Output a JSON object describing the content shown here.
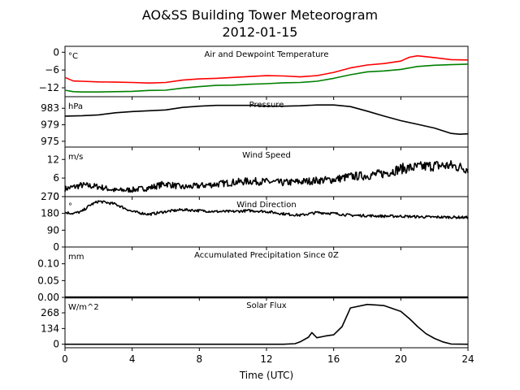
{
  "title": "AO&SS Building Tower Meteorogram",
  "subtitle": "2012-01-15",
  "chart_data": {
    "type": "line",
    "title": "AO&SS Building Tower Meteorogram",
    "subtitle": "2012-01-15",
    "xlabel": "Time (UTC)",
    "xlim": [
      0,
      24
    ],
    "x_ticks": [
      0,
      4,
      8,
      12,
      16,
      20,
      24
    ],
    "x_tick_labels": [
      "0",
      "4",
      "8",
      "12",
      "16",
      "20",
      "24"
    ],
    "legend": "none",
    "grid": false,
    "panels": [
      {
        "title": "Air and Dewpoint Temperature",
        "unit": "°C",
        "ylim": [
          -15,
          2
        ],
        "y_ticks": [
          0,
          -6,
          -12
        ],
        "y_tick_labels": [
          "0",
          "−6",
          "−12"
        ],
        "series": [
          {
            "color": "#ff0000",
            "points": [
              [
                0,
                -8.5
              ],
              [
                0.5,
                -9.7
              ],
              [
                1,
                -9.8
              ],
              [
                2,
                -10.0
              ],
              [
                3,
                -10.1
              ],
              [
                4,
                -10.2
              ],
              [
                5,
                -10.4
              ],
              [
                6,
                -10.2
              ],
              [
                7,
                -9.4
              ],
              [
                8,
                -9.0
              ],
              [
                9,
                -8.8
              ],
              [
                10,
                -8.5
              ],
              [
                11,
                -8.2
              ],
              [
                12,
                -7.9
              ],
              [
                13,
                -8.0
              ],
              [
                14,
                -8.3
              ],
              [
                15,
                -7.9
              ],
              [
                16,
                -6.8
              ],
              [
                17,
                -5.3
              ],
              [
                18,
                -4.3
              ],
              [
                19,
                -3.8
              ],
              [
                20,
                -3.0
              ],
              [
                20.5,
                -1.7
              ],
              [
                21,
                -1.2
              ],
              [
                22,
                -1.8
              ],
              [
                23,
                -2.5
              ],
              [
                24,
                -2.6
              ]
            ]
          },
          {
            "color": "#008000",
            "points": [
              [
                0,
                -12.8
              ],
              [
                0.5,
                -13.3
              ],
              [
                1,
                -13.4
              ],
              [
                2,
                -13.4
              ],
              [
                3,
                -13.3
              ],
              [
                4,
                -13.2
              ],
              [
                5,
                -12.9
              ],
              [
                6,
                -12.8
              ],
              [
                7,
                -12.1
              ],
              [
                8,
                -11.6
              ],
              [
                9,
                -11.2
              ],
              [
                10,
                -11.1
              ],
              [
                11,
                -10.8
              ],
              [
                12,
                -10.6
              ],
              [
                13,
                -10.3
              ],
              [
                14,
                -10.2
              ],
              [
                15,
                -9.8
              ],
              [
                16,
                -8.8
              ],
              [
                17,
                -7.6
              ],
              [
                18,
                -6.6
              ],
              [
                19,
                -6.3
              ],
              [
                20,
                -5.8
              ],
              [
                21,
                -4.8
              ],
              [
                22,
                -4.4
              ],
              [
                23,
                -4.2
              ],
              [
                24,
                -4.0
              ]
            ]
          }
        ]
      },
      {
        "title": "Pressure",
        "unit": "hPa",
        "ylim": [
          973.6,
          985.8
        ],
        "y_ticks": [
          983,
          979,
          975
        ],
        "y_tick_labels": [
          "983",
          "979",
          "975"
        ],
        "series": [
          {
            "color": "#000000",
            "points": [
              [
                0,
                981.1
              ],
              [
                1,
                981.2
              ],
              [
                2,
                981.4
              ],
              [
                3,
                981.9
              ],
              [
                4,
                982.2
              ],
              [
                5,
                982.4
              ],
              [
                6,
                982.6
              ],
              [
                7,
                983.2
              ],
              [
                8,
                983.5
              ],
              [
                9,
                983.7
              ],
              [
                10,
                983.7
              ],
              [
                11,
                983.7
              ],
              [
                12,
                983.5
              ],
              [
                13,
                983.5
              ],
              [
                14,
                983.6
              ],
              [
                15,
                983.8
              ],
              [
                16,
                983.8
              ],
              [
                17,
                983.4
              ],
              [
                18,
                982.3
              ],
              [
                19,
                981.1
              ],
              [
                20,
                980.0
              ],
              [
                21,
                979.1
              ],
              [
                22,
                978.2
              ],
              [
                23,
                976.9
              ],
              [
                23.5,
                976.7
              ],
              [
                24,
                976.8
              ]
            ]
          }
        ]
      },
      {
        "title": "Wind Speed",
        "unit": "m/s",
        "ylim": [
          0,
          16
        ],
        "y_ticks": [
          12,
          6,
          0
        ],
        "y_tick_labels": [
          "12",
          "6",
          "0"
        ],
        "series": [
          {
            "color": "#000000",
            "points": [
              [
                0,
                2.5
              ],
              [
                1,
                3.7
              ],
              [
                2,
                3.2
              ],
              [
                3,
                2.0
              ],
              [
                4,
                2.2
              ],
              [
                5,
                2.8
              ],
              [
                6,
                4.2
              ],
              [
                7,
                3.0
              ],
              [
                8,
                3.5
              ],
              [
                9,
                4.0
              ],
              [
                10,
                4.6
              ],
              [
                11,
                5.0
              ],
              [
                12,
                4.8
              ],
              [
                13,
                4.5
              ],
              [
                14,
                4.8
              ],
              [
                15,
                5.2
              ],
              [
                16,
                5.5
              ],
              [
                17,
                6.5
              ],
              [
                18,
                6.8
              ],
              [
                19,
                7.5
              ],
              [
                20,
                9.0
              ],
              [
                21,
                9.5
              ],
              [
                22,
                10.0
              ],
              [
                23,
                10.0
              ],
              [
                24,
                9.0
              ]
            ]
          }
        ]
      },
      {
        "title": "Wind Direction",
        "unit": "°",
        "ylim": [
          0,
          270
        ],
        "y_ticks": [
          270,
          180,
          90,
          0
        ],
        "y_tick_labels": [
          "270",
          "180",
          "90",
          "0"
        ],
        "series": [
          {
            "color": "#000000",
            "points": [
              [
                0,
                185
              ],
              [
                0.5,
                180
              ],
              [
                1,
                190
              ],
              [
                1.5,
                225
              ],
              [
                2,
                245
              ],
              [
                3,
                230
              ],
              [
                4,
                190
              ],
              [
                5,
                175
              ],
              [
                6,
                190
              ],
              [
                7,
                200
              ],
              [
                8,
                195
              ],
              [
                9,
                190
              ],
              [
                10,
                190
              ],
              [
                11,
                195
              ],
              [
                12,
                190
              ],
              [
                13,
                178
              ],
              [
                14,
                170
              ],
              [
                15,
                185
              ],
              [
                16,
                180
              ],
              [
                17,
                170
              ],
              [
                18,
                168
              ],
              [
                19,
                165
              ],
              [
                20,
                165
              ],
              [
                21,
                162
              ],
              [
                22,
                160
              ],
              [
                23,
                160
              ],
              [
                24,
                158
              ]
            ]
          }
        ]
      },
      {
        "title": "Accumulated Precipitation Since 0Z",
        "unit": "mm",
        "ylim": [
          0,
          0.15
        ],
        "y_ticks": [
          0.1,
          0.05,
          0.0
        ],
        "y_tick_labels": [
          "0.10",
          "0.05",
          "0.00"
        ],
        "series": [
          {
            "color": "#000000",
            "points": [
              [
                0,
                0
              ],
              [
                24,
                0
              ]
            ]
          }
        ]
      },
      {
        "title": "Solar Flux",
        "unit": "W/m^2",
        "ylim": [
          -30,
          400
        ],
        "y_ticks": [
          268,
          134,
          0
        ],
        "y_tick_labels": [
          "268",
          "134",
          "0"
        ],
        "series": [
          {
            "color": "#000000",
            "points": [
              [
                0,
                0
              ],
              [
                13,
                0
              ],
              [
                13.7,
                5
              ],
              [
                14,
                20
              ],
              [
                14.5,
                60
              ],
              [
                14.7,
                100
              ],
              [
                15,
                55
              ],
              [
                15.5,
                70
              ],
              [
                16,
                80
              ],
              [
                16.5,
                150
              ],
              [
                17,
                310
              ],
              [
                18,
                340
              ],
              [
                19,
                330
              ],
              [
                20,
                280
              ],
              [
                20.5,
                220
              ],
              [
                21,
                150
              ],
              [
                21.5,
                90
              ],
              [
                22,
                50
              ],
              [
                22.5,
                20
              ],
              [
                23,
                2
              ],
              [
                24,
                0
              ]
            ]
          }
        ]
      }
    ]
  }
}
